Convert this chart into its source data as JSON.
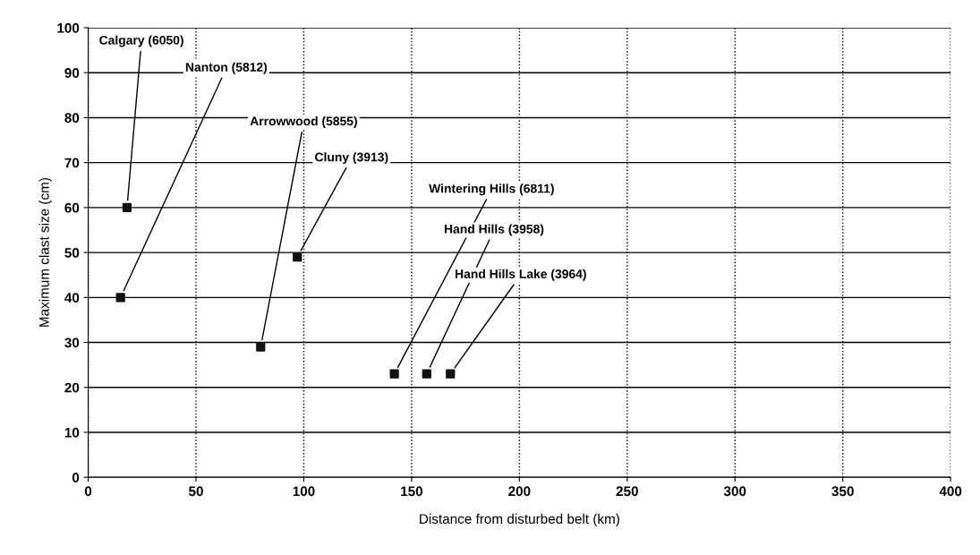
{
  "chart_data": {
    "type": "scatter",
    "xlabel": "Distance from disturbed belt (km)",
    "ylabel": "Maximum clast size (cm)",
    "x": [
      18,
      15,
      80,
      97,
      142,
      157,
      168
    ],
    "values": [
      60,
      40,
      29,
      49,
      23,
      23,
      23
    ],
    "color": "#111111",
    "marker": "square",
    "xlim": [
      0,
      400
    ],
    "xticks": [
      0,
      50,
      100,
      150,
      200,
      250,
      300,
      350,
      400
    ],
    "ylim": [
      0,
      100
    ],
    "yticks": [
      0,
      10,
      20,
      30,
      40,
      50,
      60,
      70,
      80,
      90,
      100
    ],
    "grid": true,
    "annotations": [
      {
        "text": "Calgary (6050)",
        "x": 18,
        "y": 60
      },
      {
        "text": "Nanton (5812)",
        "x": 15,
        "y": 40
      },
      {
        "text": "Arrowwood (5855)",
        "x": 80,
        "y": 29
      },
      {
        "text": "Cluny (3913)",
        "x": 97,
        "y": 49
      },
      {
        "text": "Wintering Hills (6811)",
        "x": 142,
        "y": 23
      },
      {
        "text": "Hand Hills (3958)",
        "x": 157,
        "y": 23
      },
      {
        "text": "Hand Hills Lake (3964)",
        "x": 168,
        "y": 23
      }
    ]
  }
}
